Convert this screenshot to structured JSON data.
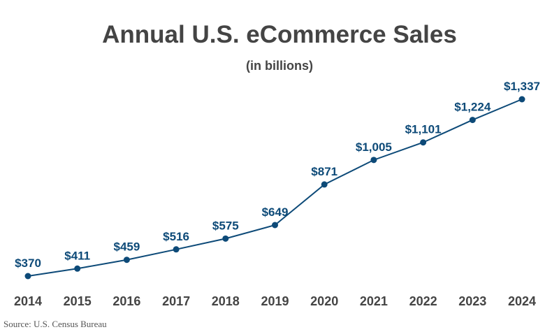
{
  "chart_data": {
    "type": "line",
    "title": "Annual U.S. eCommerce Sales",
    "subtitle": "(in billions)",
    "xlabel": "",
    "ylabel": "",
    "categories": [
      "2014",
      "2015",
      "2016",
      "2017",
      "2018",
      "2019",
      "2020",
      "2021",
      "2022",
      "2023",
      "2024"
    ],
    "values": [
      370,
      411,
      459,
      516,
      575,
      649,
      871,
      1005,
      1101,
      1224,
      1337
    ],
    "data_labels": [
      "$370",
      "$411",
      "$459",
      "$516",
      "$575",
      "$649",
      "$871",
      "$1,005",
      "$1,101",
      "$1,224",
      "$1,337"
    ],
    "grid": false,
    "legend": "none",
    "colors": {
      "line": "#0d4a78",
      "text": "#444444"
    }
  },
  "source": "Source: U.S. Census Bureau"
}
